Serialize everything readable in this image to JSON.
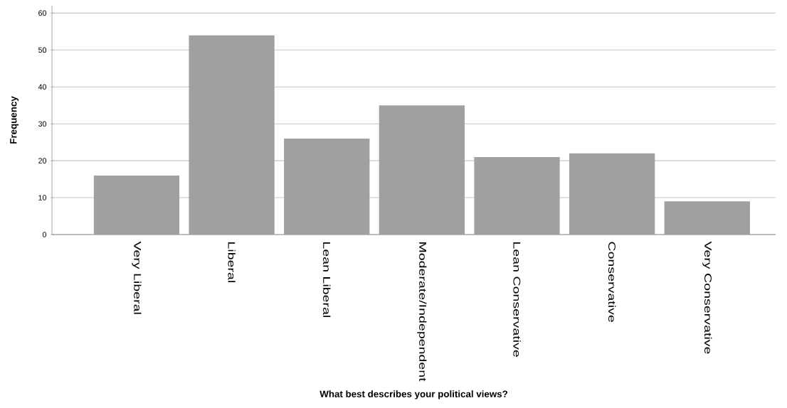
{
  "chart_data": {
    "type": "bar",
    "xlabel": "What best describes your political views?",
    "ylabel": "Frequency",
    "categories": [
      "Very Liberal",
      "Liberal",
      "Lean Liberal",
      "Moderate/Independent",
      "Lean Conservative",
      "Conservative",
      "Very Conservative"
    ],
    "values": [
      16,
      54,
      26,
      35,
      21,
      22,
      9
    ],
    "color": "#a0a0a0",
    "ylim": [
      0,
      62
    ],
    "yticks": [
      0,
      10,
      20,
      30,
      40,
      50,
      60
    ],
    "grid": "y"
  }
}
